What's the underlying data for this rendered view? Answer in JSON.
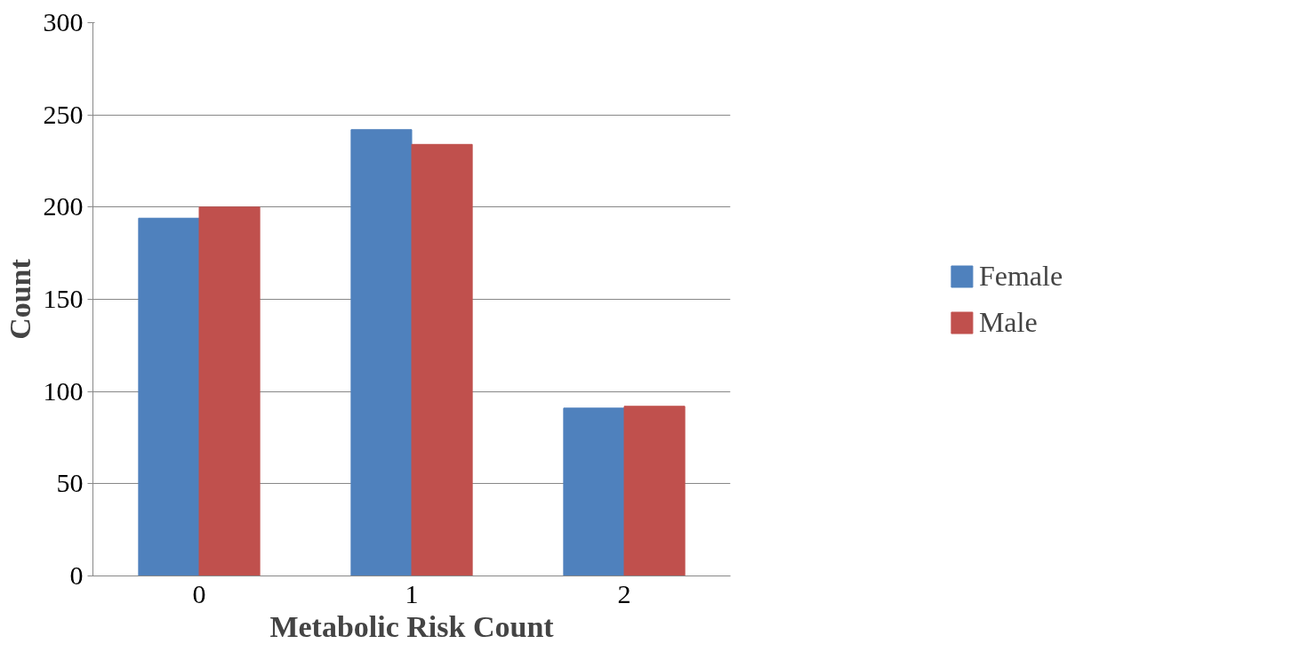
{
  "chart_data": {
    "type": "bar",
    "xlabel": "Metabolic Risk Count",
    "ylabel": "Count",
    "categories": [
      "0",
      "1",
      "2"
    ],
    "series": [
      {
        "name": "Female",
        "color": "#4f81bd",
        "values": [
          194,
          242,
          91
        ]
      },
      {
        "name": "Male",
        "color": "#c0504d",
        "values": [
          200,
          234,
          92
        ]
      }
    ],
    "ylim": [
      0,
      300
    ],
    "yticks": [
      0,
      50,
      100,
      150,
      200,
      250,
      300
    ],
    "grid": "y",
    "legend": "right"
  }
}
